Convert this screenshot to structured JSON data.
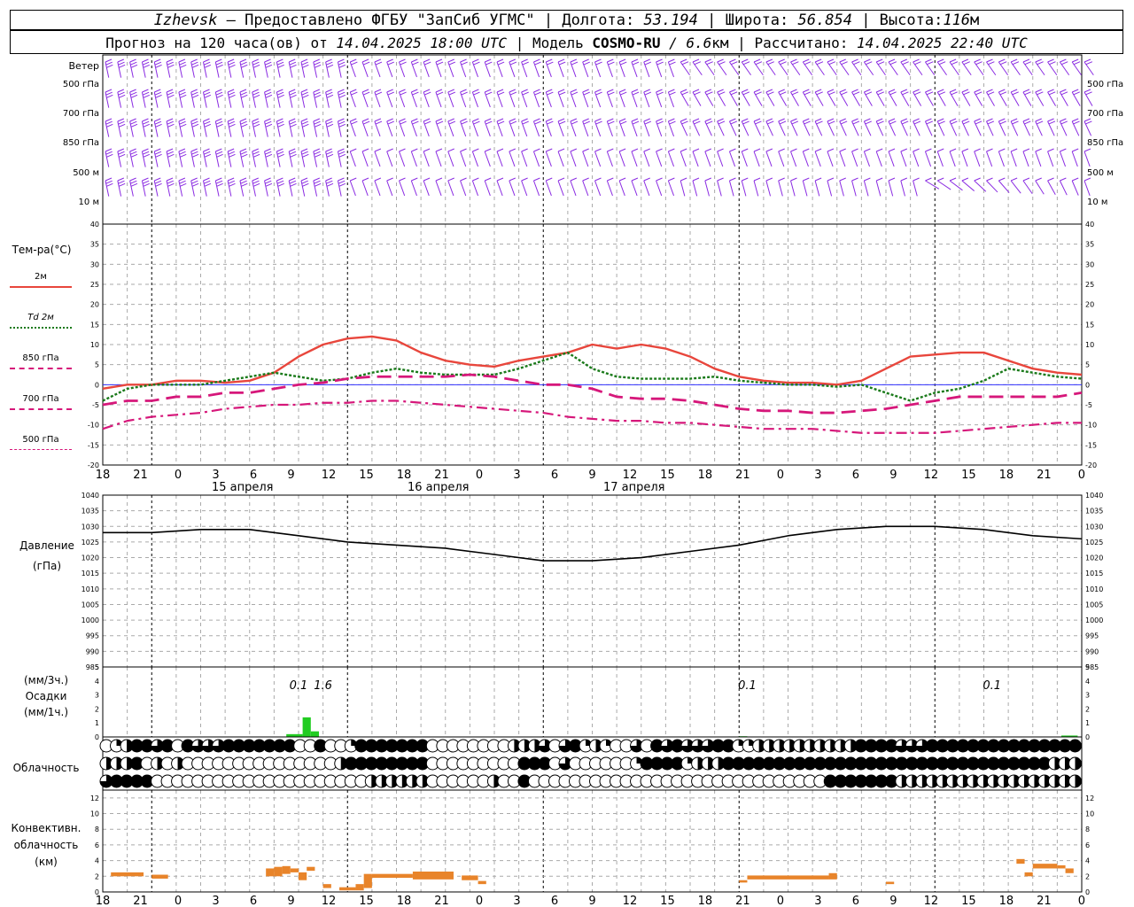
{
  "header": {
    "location": "Izhevsk",
    "dash": "–",
    "provider": "Предоставлено ФГБУ \"ЗапСиб УГМС\" |",
    "longitude_label": "Долгота:",
    "longitude": "53.194",
    "latitude_label": "| Широта:",
    "latitude": "56.854",
    "elevation_label": "| Высота:",
    "elevation": "116",
    "elevation_unit": "м",
    "forecast_label": "Прогноз на 120 часа(ов) от",
    "forecast_start": "14.04.2025 18:00 UTC",
    "model_label": "| Модель",
    "model_name": "COSMO-RU",
    "model_res": "/ 6.6",
    "model_res_unit": "км",
    "calculated_label": "| Рассчитано:",
    "calculated": "14.04.2025 22:40 UTC"
  },
  "wind_panel": {
    "title": "Ветер",
    "levels": [
      "500 гПа",
      "700 гПа",
      "850 гПа",
      "500 м",
      "10 м"
    ]
  },
  "temp_panel": {
    "title": "Тем-ра(°С)",
    "legend": [
      {
        "label": "2м",
        "color": "#e8463c",
        "style": "solid"
      },
      {
        "label": "Td 2м",
        "color": "#1a7a1a",
        "style": "dotted"
      },
      {
        "label": "850 гПа",
        "color": "#d6177a",
        "style": "dashed"
      },
      {
        "label": "700 гПа",
        "color": "#d6177a",
        "style": "dashdot"
      },
      {
        "label": "500 гПа",
        "color": "#d6177a",
        "style": "dash-thin"
      }
    ]
  },
  "pressure_panel": {
    "title": "Давление",
    "unit": "(гПа)"
  },
  "precip_panel": {
    "unit_top": "(мм/3ч.)",
    "title": "Осадки",
    "unit_bottom": "(мм/1ч.)",
    "annotations": [
      {
        "text": "0.1",
        "hour": 24
      },
      {
        "text": "1.6",
        "hour": 27
      },
      {
        "text": "0.1",
        "hour": 79
      },
      {
        "text": "0.1",
        "hour": 109
      }
    ]
  },
  "cloud_panel": {
    "title": "Облачность"
  },
  "conv_panel": {
    "title": "Конвективн.",
    "title2": "облачность",
    "unit": "(км)"
  },
  "x_axis": {
    "hour_labels": [
      "18",
      "21",
      "0",
      "3",
      "6",
      "9",
      "12",
      "15",
      "18",
      "21",
      "0",
      "3",
      "6",
      "9",
      "12",
      "15",
      "18",
      "21",
      "0",
      "3",
      "6",
      "9",
      "12",
      "15",
      "18",
      "21",
      "0"
    ],
    "day_labels": [
      "15 апреля",
      "16 апреля",
      "17 апреля"
    ]
  },
  "colors": {
    "wind": "#8a2be2",
    "temp2m": "#e8463c",
    "td": "#1a7a1a",
    "upper": "#d6177a",
    "pressure": "#000000",
    "precip": "#22cc22",
    "conv": "#e8842a",
    "grid": "#aaaaaa",
    "zero_line": "#3030ff"
  },
  "chart_data": [
    {
      "type": "line",
      "title": "Тем-ра(°С)",
      "x_hours": [
        0,
        3,
        6,
        9,
        12,
        15,
        18,
        21,
        24,
        27,
        30,
        33,
        36,
        39,
        42,
        45,
        48,
        51,
        54,
        57,
        60,
        63,
        66,
        69,
        72,
        75,
        78,
        81,
        84,
        87,
        90,
        93,
        96,
        99,
        102,
        105,
        108,
        111,
        114,
        117,
        120
      ],
      "ylim": [
        -20,
        40
      ],
      "yticks": [
        -20,
        -15,
        -10,
        -5,
        0,
        5,
        10,
        15,
        20,
        25,
        30,
        35,
        40
      ],
      "series": [
        {
          "name": "2м",
          "values": [
            -1,
            0,
            0,
            1,
            1,
            0.5,
            1,
            3,
            7,
            10,
            11.5,
            12,
            11,
            8,
            6,
            5,
            4.5,
            6,
            7,
            8,
            10,
            9,
            10,
            9,
            7,
            4,
            2,
            1,
            0.5,
            0.5,
            0,
            1,
            4,
            7,
            7.5,
            8,
            8,
            6,
            4,
            3,
            2.5
          ]
        },
        {
          "name": "Td 2м",
          "values": [
            -4,
            -1,
            0,
            0,
            0,
            1,
            2,
            3,
            2,
            1,
            1.5,
            3,
            4,
            3,
            2.5,
            2.5,
            2.5,
            4,
            6,
            8,
            4,
            2,
            1.5,
            1.5,
            1.5,
            2,
            1,
            0.5,
            0,
            0,
            -0.5,
            0,
            -2,
            -4,
            -2,
            -1,
            1,
            4,
            3,
            2,
            1.5
          ]
        },
        {
          "name": "850 гПа",
          "values": [
            -5,
            -4,
            -4,
            -3,
            -3,
            -2,
            -2,
            -1,
            0,
            0.5,
            1.5,
            2,
            2,
            2,
            2,
            2.5,
            2,
            1,
            0,
            0,
            -1,
            -3,
            -3.5,
            -3.5,
            -4,
            -5,
            -6,
            -6.5,
            -6.5,
            -7,
            -7,
            -6.5,
            -6,
            -5,
            -4,
            -3,
            -3,
            -3,
            -3,
            -3,
            -2
          ]
        },
        {
          "name": "700 гПа",
          "values": [
            -11,
            -9,
            -8,
            -7.5,
            -7,
            -6,
            -5.5,
            -5,
            -5,
            -4.5,
            -4.5,
            -4,
            -4,
            -4.5,
            -5,
            -5.5,
            -6,
            -6.5,
            -7,
            -8,
            -8.5,
            -9,
            -9,
            -9.5,
            -9.5,
            -10,
            -10.5,
            -11,
            -11,
            -11,
            -11.5,
            -12,
            -12,
            -12,
            -12,
            -11.5,
            -11,
            -10.5,
            -10,
            -9.5,
            -9.5
          ]
        }
      ]
    },
    {
      "type": "line",
      "title": "Давление",
      "ylabel": "(гПа)",
      "x_hours": [
        0,
        6,
        12,
        18,
        24,
        30,
        36,
        42,
        48,
        54,
        60,
        66,
        72,
        78,
        84,
        90,
        96,
        102,
        108,
        114,
        120
      ],
      "ylim": [
        985,
        1040
      ],
      "yticks": [
        985,
        990,
        995,
        1000,
        1005,
        1010,
        1015,
        1020,
        1025,
        1030,
        1035,
        1040
      ],
      "series": [
        {
          "name": "",
          "values": [
            1028,
            1028,
            1029,
            1029,
            1027,
            1025,
            1024,
            1023,
            1021,
            1019,
            1019,
            1020,
            1022,
            1024,
            1027,
            1029,
            1030,
            1030,
            1029,
            1027,
            1026
          ]
        }
      ]
    },
    {
      "type": "bar",
      "title": "Осадки",
      "ylim": [
        0,
        5
      ],
      "yticks": [
        0,
        1,
        2,
        3,
        4,
        5
      ],
      "bars": [
        {
          "hour": 23.5,
          "width": 2,
          "value": 0.2
        },
        {
          "hour": 25,
          "width": 1,
          "value": 1.4
        },
        {
          "hour": 26,
          "width": 1,
          "value": 0.4
        },
        {
          "hour": 78.5,
          "width": 1,
          "value": 0.05
        },
        {
          "hour": 118.5,
          "width": 2,
          "value": 0.1
        }
      ]
    },
    {
      "type": "bar",
      "title": "Конвективн. облачность",
      "ylabel": "(км)",
      "ylim": [
        0,
        13
      ],
      "yticks": [
        0,
        2,
        4,
        6,
        8,
        10,
        12
      ],
      "segments": [
        {
          "h1": 1,
          "h2": 5,
          "bottom": 2.0,
          "top": 2.5
        },
        {
          "h1": 6,
          "h2": 8,
          "bottom": 1.7,
          "top": 2.2
        },
        {
          "h1": 20,
          "h2": 21,
          "bottom": 2.0,
          "top": 3.0
        },
        {
          "h1": 21,
          "h2": 22,
          "bottom": 2.0,
          "top": 3.2
        },
        {
          "h1": 22,
          "h2": 23,
          "bottom": 2.3,
          "top": 3.3
        },
        {
          "h1": 23,
          "h2": 24,
          "bottom": 2.5,
          "top": 3.0
        },
        {
          "h1": 24,
          "h2": 25,
          "bottom": 1.5,
          "top": 2.5
        },
        {
          "h1": 25,
          "h2": 26,
          "bottom": 2.7,
          "top": 3.2
        },
        {
          "h1": 27,
          "h2": 28,
          "bottom": 0.5,
          "top": 1.0
        },
        {
          "h1": 29,
          "h2": 31,
          "bottom": 0.2,
          "top": 0.6
        },
        {
          "h1": 31,
          "h2": 32,
          "bottom": 0.2,
          "top": 1.0
        },
        {
          "h1": 32,
          "h2": 33,
          "bottom": 0.5,
          "top": 2.3
        },
        {
          "h1": 33,
          "h2": 38,
          "bottom": 1.8,
          "top": 2.3
        },
        {
          "h1": 38,
          "h2": 43,
          "bottom": 1.6,
          "top": 2.6
        },
        {
          "h1": 44,
          "h2": 46,
          "bottom": 1.5,
          "top": 2.1
        },
        {
          "h1": 46,
          "h2": 47,
          "bottom": 1.0,
          "top": 1.4
        },
        {
          "h1": 78,
          "h2": 79,
          "bottom": 1.2,
          "top": 1.5
        },
        {
          "h1": 79,
          "h2": 89,
          "bottom": 1.6,
          "top": 2.1
        },
        {
          "h1": 89,
          "h2": 90,
          "bottom": 1.6,
          "top": 2.4
        },
        {
          "h1": 96,
          "h2": 97,
          "bottom": 1.0,
          "top": 1.3
        },
        {
          "h1": 112,
          "h2": 113,
          "bottom": 3.6,
          "top": 4.2
        },
        {
          "h1": 113,
          "h2": 114,
          "bottom": 2.0,
          "top": 2.5
        },
        {
          "h1": 114,
          "h2": 117,
          "bottom": 3.0,
          "top": 3.6
        },
        {
          "h1": 117,
          "h2": 118,
          "bottom": 3.0,
          "top": 3.4
        },
        {
          "h1": 118,
          "h2": 119,
          "bottom": 2.4,
          "top": 3.0
        }
      ]
    }
  ]
}
